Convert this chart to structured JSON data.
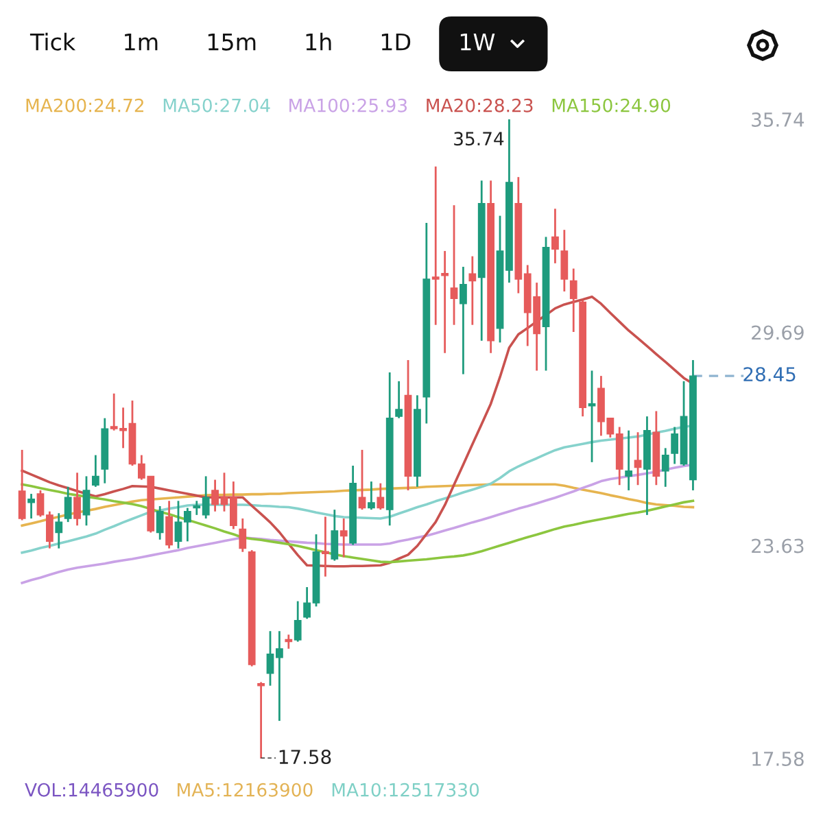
{
  "chart_data": {
    "type": "candlestick",
    "categories": [
      null,
      null,
      null,
      null,
      null,
      null,
      null,
      null,
      null,
      null,
      null,
      null,
      null,
      null,
      null,
      null,
      null,
      null,
      null,
      null,
      null,
      null,
      null,
      null,
      null,
      null,
      null,
      null,
      null,
      null,
      null,
      null,
      null,
      null,
      null,
      null,
      null,
      null,
      null,
      null,
      null,
      null,
      null,
      null,
      null,
      null,
      null,
      null,
      null,
      null,
      null,
      null,
      null,
      null,
      null,
      null,
      null,
      null,
      null,
      null,
      null,
      null,
      null,
      null,
      null,
      null,
      null,
      null,
      null,
      null,
      null,
      null,
      null,
      null
    ],
    "ohlc": [
      [
        25.18,
        26.35,
        24.35,
        24.4
      ],
      [
        24.85,
        25.1,
        24.4,
        24.95
      ],
      [
        25.1,
        25.2,
        24.45,
        24.5
      ],
      [
        24.5,
        24.6,
        23.55,
        23.75
      ],
      [
        24.0,
        24.55,
        23.55,
        24.3
      ],
      [
        24.4,
        25.3,
        24.3,
        25.0
      ],
      [
        25.0,
        25.7,
        24.2,
        24.4
      ],
      [
        24.5,
        25.6,
        24.2,
        25.2
      ],
      [
        25.35,
        26.2,
        25.3,
        25.6
      ],
      [
        25.8,
        27.25,
        25.4,
        26.95
      ],
      [
        27.0,
        27.95,
        26.9,
        26.95
      ],
      [
        26.95,
        27.55,
        26.4,
        26.9
      ],
      [
        27.1,
        27.75,
        25.9,
        25.95
      ],
      [
        25.95,
        26.2,
        25.5,
        25.55
      ],
      [
        25.6,
        25.6,
        24.0,
        24.05
      ],
      [
        24.0,
        24.75,
        23.8,
        24.6
      ],
      [
        24.45,
        24.9,
        23.55,
        23.65
      ],
      [
        23.75,
        24.9,
        23.55,
        24.3
      ],
      [
        24.3,
        24.7,
        23.75,
        24.6
      ],
      [
        24.7,
        24.9,
        24.5,
        24.75
      ],
      [
        24.5,
        25.6,
        24.4,
        25.0
      ],
      [
        25.2,
        25.5,
        24.6,
        24.8
      ],
      [
        25.0,
        25.7,
        24.6,
        24.8
      ],
      [
        25.0,
        25.45,
        24.1,
        24.2
      ],
      [
        24.1,
        24.4,
        23.45,
        23.55
      ],
      [
        23.45,
        23.5,
        20.2,
        20.25
      ],
      [
        19.7,
        19.75,
        17.58,
        19.65
      ],
      [
        20.0,
        21.2,
        19.65,
        20.55
      ],
      [
        20.45,
        21.2,
        18.65,
        20.7
      ],
      [
        20.95,
        21.1,
        20.7,
        20.9
      ],
      [
        20.95,
        22.05,
        20.9,
        21.5
      ],
      [
        21.6,
        22.45,
        21.55,
        22.0
      ],
      [
        22.0,
        23.95,
        21.9,
        23.45
      ],
      [
        23.45,
        24.45,
        22.75,
        23.4
      ],
      [
        23.25,
        24.65,
        23.2,
        24.05
      ],
      [
        24.05,
        24.4,
        23.3,
        23.9
      ],
      [
        23.7,
        25.9,
        23.65,
        25.4
      ],
      [
        25.0,
        26.35,
        24.65,
        24.7
      ],
      [
        24.7,
        25.45,
        24.65,
        24.85
      ],
      [
        25.0,
        25.4,
        24.65,
        24.7
      ],
      [
        24.65,
        28.55,
        24.2,
        27.25
      ],
      [
        27.3,
        28.3,
        27.25,
        27.5
      ],
      [
        27.9,
        28.9,
        25.2,
        25.6
      ],
      [
        25.6,
        27.9,
        25.3,
        27.5
      ],
      [
        27.85,
        32.8,
        27.1,
        31.2
      ],
      [
        31.25,
        34.4,
        29.9,
        31.2
      ],
      [
        31.35,
        32.0,
        29.1,
        31.3
      ],
      [
        30.95,
        33.3,
        29.9,
        30.65
      ],
      [
        30.5,
        31.55,
        28.5,
        31.05
      ],
      [
        31.35,
        31.85,
        29.9,
        31.15
      ],
      [
        31.25,
        34.0,
        29.45,
        33.35
      ],
      [
        33.35,
        34.0,
        29.1,
        29.45
      ],
      [
        29.8,
        33.0,
        29.4,
        32.0
      ],
      [
        31.45,
        35.74,
        31.1,
        33.95
      ],
      [
        33.35,
        34.1,
        30.8,
        31.2
      ],
      [
        31.35,
        31.6,
        29.3,
        30.25
      ],
      [
        30.7,
        31.1,
        28.6,
        29.65
      ],
      [
        29.85,
        32.4,
        28.6,
        32.1
      ],
      [
        32.4,
        33.2,
        31.65,
        32.05
      ],
      [
        32.0,
        32.6,
        30.85,
        31.2
      ],
      [
        31.15,
        31.5,
        29.7,
        30.65
      ],
      [
        30.55,
        30.6,
        27.3,
        27.55
      ],
      [
        27.6,
        28.6,
        26.0,
        27.65
      ],
      [
        28.1,
        28.45,
        26.75,
        27.15
      ],
      [
        27.25,
        27.25,
        26.7,
        26.8
      ],
      [
        26.8,
        27.0,
        25.35,
        25.8
      ],
      [
        25.6,
        26.9,
        25.2,
        25.75
      ],
      [
        26.05,
        26.85,
        25.35,
        25.85
      ],
      [
        25.8,
        27.3,
        24.5,
        26.9
      ],
      [
        26.85,
        27.45,
        25.35,
        25.6
      ],
      [
        25.75,
        26.4,
        25.3,
        26.2
      ],
      [
        26.25,
        27.0,
        25.95,
        26.8
      ],
      [
        25.95,
        28.3,
        25.9,
        27.3
      ],
      [
        25.5,
        28.9,
        25.2,
        28.45
      ]
    ],
    "series": [
      {
        "name": "MA200:24.72",
        "type": "line",
        "color": "#e6b44f",
        "values": [
          24.2,
          24.26,
          24.32,
          24.39,
          24.45,
          24.51,
          24.57,
          24.62,
          24.67,
          24.73,
          24.78,
          24.83,
          24.88,
          24.92,
          24.94,
          24.96,
          24.98,
          25.0,
          25.02,
          25.04,
          25.06,
          25.07,
          25.07,
          25.08,
          25.08,
          25.09,
          25.09,
          25.1,
          25.1,
          25.12,
          25.13,
          25.14,
          25.15,
          25.16,
          25.17,
          25.19,
          25.2,
          25.21,
          25.22,
          25.24,
          25.25,
          25.26,
          25.27,
          25.28,
          25.3,
          25.31,
          25.32,
          25.33,
          25.34,
          25.35,
          25.36,
          25.37,
          25.37,
          25.37,
          25.37,
          25.37,
          25.37,
          25.37,
          25.37,
          25.33,
          25.27,
          25.22,
          25.17,
          25.12,
          25.06,
          25.01,
          24.95,
          24.9,
          24.84,
          24.8,
          24.78,
          24.76,
          24.73,
          24.72
        ]
      },
      {
        "name": "MA50:27.04",
        "type": "line",
        "color": "#86d2cc",
        "values": [
          23.43,
          23.49,
          23.56,
          23.62,
          23.69,
          23.75,
          23.82,
          23.89,
          23.97,
          24.08,
          24.18,
          24.29,
          24.39,
          24.49,
          24.59,
          24.63,
          24.68,
          24.72,
          24.77,
          24.79,
          24.79,
          24.79,
          24.79,
          24.79,
          24.79,
          24.78,
          24.76,
          24.75,
          24.73,
          24.72,
          24.68,
          24.63,
          24.57,
          24.52,
          24.47,
          24.44,
          24.43,
          24.42,
          24.41,
          24.4,
          24.45,
          24.54,
          24.63,
          24.72,
          24.8,
          24.89,
          24.97,
          25.05,
          25.14,
          25.22,
          25.3,
          25.39,
          25.55,
          25.74,
          25.88,
          26.0,
          26.11,
          26.23,
          26.34,
          26.42,
          26.47,
          26.52,
          26.57,
          26.61,
          26.64,
          26.67,
          26.7,
          26.73,
          26.78,
          26.84,
          26.89,
          26.95,
          27.0,
          27.04
        ]
      },
      {
        "name": "MA100:25.93",
        "type": "line",
        "color": "#c9a2e6",
        "values": [
          22.57,
          22.65,
          22.72,
          22.8,
          22.88,
          22.95,
          23.0,
          23.04,
          23.08,
          23.12,
          23.17,
          23.21,
          23.25,
          23.3,
          23.35,
          23.4,
          23.45,
          23.5,
          23.56,
          23.61,
          23.66,
          23.71,
          23.76,
          23.81,
          23.86,
          23.84,
          23.82,
          23.79,
          23.77,
          23.75,
          23.73,
          23.71,
          23.7,
          23.68,
          23.67,
          23.66,
          23.66,
          23.66,
          23.66,
          23.66,
          23.69,
          23.75,
          23.8,
          23.86,
          23.91,
          23.98,
          24.06,
          24.13,
          24.21,
          24.29,
          24.36,
          24.44,
          24.52,
          24.6,
          24.68,
          24.75,
          24.83,
          24.91,
          24.99,
          25.08,
          25.17,
          25.27,
          25.36,
          25.46,
          25.52,
          25.56,
          25.6,
          25.64,
          25.68,
          25.73,
          25.79,
          25.84,
          25.89,
          25.93
        ]
      },
      {
        "name": "MA20:28.23",
        "type": "line",
        "color": "#c9524f",
        "values": [
          25.76,
          25.65,
          25.54,
          25.43,
          25.34,
          25.26,
          25.18,
          25.1,
          25.03,
          25.09,
          25.17,
          25.24,
          25.32,
          25.31,
          25.3,
          25.25,
          25.2,
          25.15,
          25.1,
          25.05,
          25.0,
          25.0,
          25.0,
          25.0,
          25.0,
          24.76,
          24.53,
          24.29,
          24.01,
          23.68,
          23.36,
          23.07,
          23.06,
          23.05,
          23.04,
          23.04,
          23.05,
          23.05,
          23.06,
          23.07,
          23.14,
          23.26,
          23.37,
          23.62,
          23.96,
          24.3,
          24.78,
          25.36,
          25.93,
          26.51,
          27.08,
          27.66,
          28.42,
          29.25,
          29.63,
          29.81,
          30.0,
          30.18,
          30.37,
          30.48,
          30.55,
          30.62,
          30.7,
          30.5,
          30.24,
          29.99,
          29.74,
          29.52,
          29.3,
          29.07,
          28.85,
          28.62,
          28.39,
          28.23
        ]
      },
      {
        "name": "MA150:24.90",
        "type": "line",
        "color": "#8cc63f",
        "values": [
          25.37,
          25.32,
          25.26,
          25.21,
          25.16,
          25.1,
          25.06,
          25.02,
          24.98,
          24.94,
          24.89,
          24.85,
          24.81,
          24.75,
          24.67,
          24.59,
          24.52,
          24.44,
          24.36,
          24.28,
          24.2,
          24.12,
          24.03,
          23.95,
          23.86,
          23.82,
          23.79,
          23.75,
          23.71,
          23.67,
          23.62,
          23.56,
          23.5,
          23.44,
          23.38,
          23.33,
          23.29,
          23.25,
          23.21,
          23.17,
          23.16,
          23.18,
          23.2,
          23.22,
          23.24,
          23.27,
          23.3,
          23.32,
          23.35,
          23.4,
          23.47,
          23.55,
          23.63,
          23.71,
          23.79,
          23.87,
          23.94,
          24.02,
          24.1,
          24.17,
          24.22,
          24.28,
          24.33,
          24.38,
          24.43,
          24.48,
          24.53,
          24.57,
          24.62,
          24.68,
          24.74,
          24.8,
          24.86,
          24.9
        ]
      }
    ],
    "ylim": [
      17.58,
      35.74
    ],
    "yticks": [
      35.74,
      29.69,
      23.63,
      17.58
    ],
    "ref_lines": [
      {
        "axis": "y",
        "value": 28.45,
        "label": "28.45",
        "color": "#8fb4d0",
        "line_style": "dashed"
      }
    ],
    "annotations": [
      "Tick",
      "1m",
      "15m",
      "1h",
      "1D",
      "1W",
      "35.74",
      "17.58",
      "VOL:14465900",
      "MA5:12163900",
      "MA10:12517330"
    ],
    "legend": "top",
    "grid": false
  }
}
